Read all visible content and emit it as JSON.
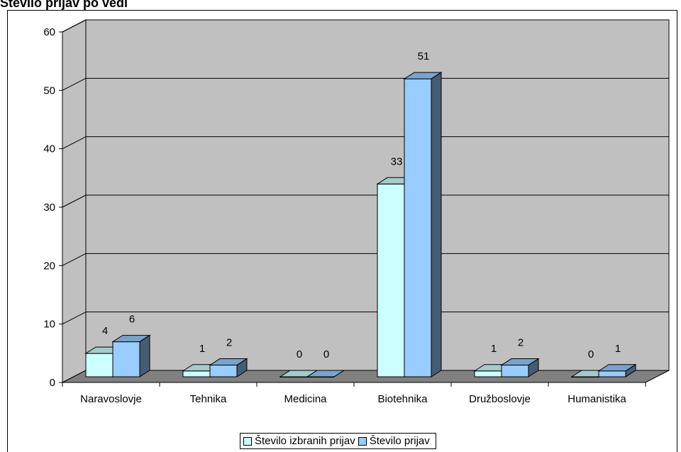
{
  "title": "Število prijav po vedi",
  "chart_data": {
    "type": "bar",
    "categories": [
      "Naravoslovje",
      "Tehnika",
      "Medicina",
      "Biotehnika",
      "Družboslovje",
      "Humanistika"
    ],
    "series": [
      {
        "name": "Število izbranih prijav",
        "values": [
          4,
          1,
          0,
          33,
          1,
          0
        ],
        "color": "#ccffff"
      },
      {
        "name": "Število prijav",
        "values": [
          6,
          2,
          0,
          51,
          2,
          1
        ],
        "color": "#99ccff"
      }
    ],
    "yticks": [
      "0",
      "10",
      "20",
      "30",
      "40",
      "50",
      "60"
    ],
    "ylim": [
      0,
      60
    ],
    "grid": true,
    "legend": "bottom",
    "colors": {
      "wall": "#c0c0c0",
      "floor": "#808080",
      "gridline": "#000000"
    }
  }
}
